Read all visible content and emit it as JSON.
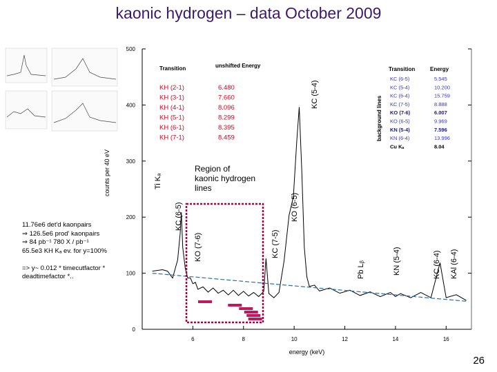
{
  "slide": {
    "title": "kaonic hydrogen – data October  2009",
    "page_number": "26"
  },
  "notes": [
    "11.76e6 det'd kaonpairs",
    "⇒ 126.5e6 prod' kaonpairs",
    "⇒  84 pb⁻¹    780 X / pb⁻¹",
    "65.5e3 KH Kₐ ev. for y=100%",
    "",
    "=>   y~ 0.012 * timecutfactor *",
    "deadtimefactor *.."
  ],
  "region_label": "Region of\nkaonic hydrogen\nlines",
  "table_left": {
    "headers": [
      "Transition",
      "unshifted Energy"
    ],
    "rows": [
      [
        "KH (2-1)",
        "6.480"
      ],
      [
        "KH (3-1)",
        "7.660"
      ],
      [
        "KH (4-1)",
        "8.096"
      ],
      [
        "KH (5-1)",
        "8.299"
      ],
      [
        "KH (6-1)",
        "8.395"
      ],
      [
        "KH (7-1)",
        "8.459"
      ]
    ]
  },
  "table_right": {
    "headers": [
      "Transition",
      "Energy"
    ],
    "rows": [
      [
        "KC (6-5)",
        "5.545"
      ],
      [
        "KC (5-4)",
        "10.200"
      ],
      [
        "KC (6-4)",
        "15.759"
      ],
      [
        "KC (7-5)",
        "8.888"
      ],
      [
        "KO (7-6)",
        "6.007"
      ],
      [
        "KO (6-5)",
        "9.969"
      ],
      [
        "KN (5-4)",
        "7.596"
      ],
      [
        "KN (6-4)",
        "13.996"
      ],
      [
        "Cu Kₐ",
        "8.04"
      ]
    ],
    "side_label": "background lines"
  },
  "chart_data": {
    "type": "line",
    "title": "kaonic hydrogen – data October  2009",
    "xlabel": "energy (keV)",
    "ylabel": "counts per 40 eV",
    "xlim": [
      4,
      17
    ],
    "ylim": [
      0,
      500
    ],
    "x_ticks": [
      "6",
      "8",
      "10",
      "12",
      "14",
      "16"
    ],
    "y_ticks": [
      "0",
      "100",
      "200",
      "300",
      "400",
      "500"
    ],
    "series": [
      {
        "x": [
          4.4,
          4.8,
          5.0,
          5.2,
          5.4,
          5.5,
          5.545,
          5.6,
          5.7,
          5.8,
          5.9,
          6.0,
          6.1,
          6.2,
          6.4,
          6.6,
          6.8,
          7.0,
          7.2,
          7.4,
          7.6,
          7.8,
          8.0,
          8.2,
          8.4,
          8.6,
          8.8,
          8.888,
          9.0,
          9.2,
          9.4,
          9.6,
          9.8,
          9.969,
          10.1,
          10.2,
          10.3,
          10.4,
          10.5,
          10.6,
          10.8,
          11.0,
          11.4,
          11.8,
          12.2,
          12.6,
          13.0,
          13.4,
          13.8,
          14.0,
          14.2,
          14.6,
          15.0,
          15.4,
          15.759,
          16.0,
          16.4,
          16.8
        ],
        "y": [
          100,
          110,
          100,
          95,
          120,
          175,
          205,
          150,
          105,
          95,
          88,
          85,
          80,
          75,
          72,
          70,
          70,
          68,
          66,
          65,
          66,
          64,
          64,
          63,
          62,
          62,
          64,
          130,
          60,
          60,
          62,
          125,
          200,
          240,
          330,
          400,
          280,
          150,
          90,
          80,
          75,
          72,
          70,
          68,
          66,
          64,
          63,
          62,
          62,
          62,
          60,
          60,
          62,
          60,
          115,
          60,
          58,
          55
        ]
      }
    ],
    "fit_line": {
      "x": [
        4.4,
        16.8
      ],
      "y": [
        100,
        50
      ]
    },
    "peak_labels": [
      "Ti Kₐ",
      "KC (6-5)",
      "KO (7-6)",
      "KC (7-5)",
      "KO (6-5)",
      "KC (5-4)",
      "Pb Lᵦ",
      "KN (5-4)",
      "KC (6-4)",
      "KAl (6-4)"
    ],
    "kh_markers": [
      6.48,
      7.66,
      8.096,
      8.299,
      8.395,
      8.459
    ],
    "grid": false
  }
}
